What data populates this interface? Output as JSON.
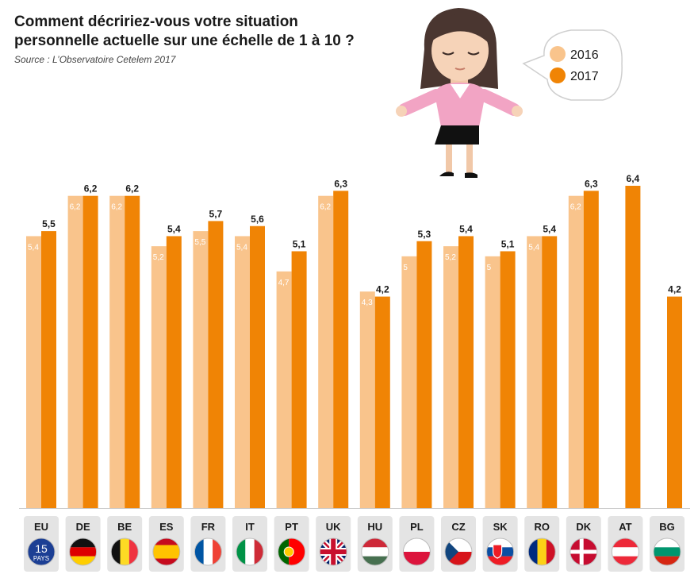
{
  "title_line1": "Comment décririez-vous votre situation",
  "title_line2": "personnelle actuelle sur une échelle de 1 à 10 ?",
  "source": "Source : L’Observatoire Cetelem 2017",
  "colors": {
    "y2016": "#f9c48c",
    "y2017": "#f08405",
    "axis": "#cccccc",
    "labelbg": "#e4e4e4",
    "dark": "#1a1a1a"
  },
  "chart_data": {
    "type": "bar",
    "title": "Comment décririez-vous votre situation personnelle actuelle sur une échelle de 1 à 10 ?",
    "categories": [
      "EU",
      "DE",
      "BE",
      "ES",
      "FR",
      "IT",
      "PT",
      "UK",
      "HU",
      "PL",
      "CZ",
      "SK",
      "RO",
      "DK",
      "AT",
      "BG"
    ],
    "category_sublabels": {
      "EU": "15 PAYS"
    },
    "category_icons": [
      "eu-15-pays-badge",
      "flag-germany",
      "flag-belgium",
      "flag-spain",
      "flag-france",
      "flag-italy",
      "flag-portugal",
      "flag-uk",
      "flag-hungary",
      "flag-poland",
      "flag-czech-republic",
      "flag-slovakia",
      "flag-romania",
      "flag-denmark",
      "flag-austria",
      "flag-bulgaria"
    ],
    "series": [
      {
        "name": "2016",
        "values": [
          5.4,
          6.2,
          6.2,
          5.2,
          5.5,
          5.4,
          4.7,
          6.2,
          4.3,
          5,
          5.2,
          5,
          5.4,
          6.2,
          null,
          null
        ],
        "labels": [
          "5,4",
          "6,2",
          "6,2",
          "5,2",
          "5,5",
          "5,4",
          "4,7",
          "6,2",
          "4,3",
          "5",
          "5,2",
          "5",
          "5,4",
          "6,2",
          "",
          ""
        ]
      },
      {
        "name": "2017",
        "values": [
          5.5,
          6.2,
          6.2,
          5.4,
          5.7,
          5.6,
          5.1,
          6.3,
          4.2,
          5.3,
          5.4,
          5.1,
          5.4,
          6.3,
          6.4,
          4.2
        ],
        "labels": [
          "5,5",
          "6,2",
          "6,2",
          "5,4",
          "5,7",
          "5,6",
          "5,1",
          "6,3",
          "4,2",
          "5,3",
          "5,4",
          "5,1",
          "5,4",
          "6,3",
          "6,4",
          "4,2"
        ]
      }
    ],
    "ylim": [
      0,
      6.4
    ],
    "grid": false,
    "legend_position": "top-right"
  }
}
